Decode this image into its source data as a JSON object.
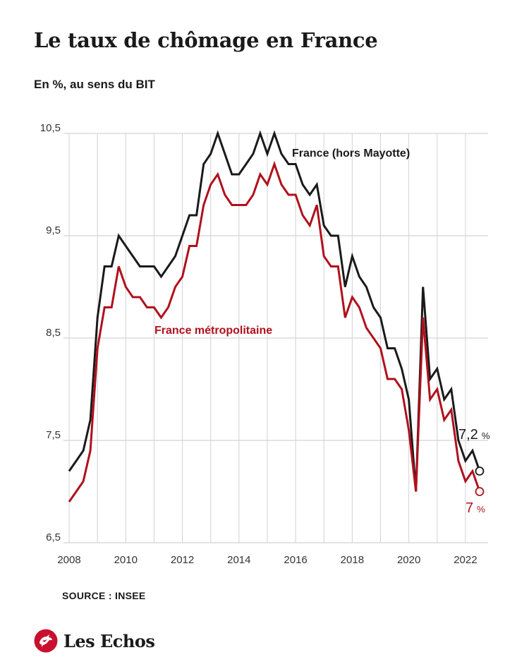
{
  "title": "Le taux de chômage en France",
  "subtitle": "En %, au sens du BIT",
  "source": "SOURCE : INSEE",
  "brand": {
    "name": "Les Echos",
    "logo_icon": "les-echos-rooster-logo",
    "logo_color": "#c8102e"
  },
  "chart_data": {
    "type": "line",
    "xlim": [
      2007.8,
      2022.8
    ],
    "ylim": [
      6.5,
      10.5
    ],
    "grid": {
      "vertical": true,
      "horizontal": true
    },
    "x_ticks": [
      2008,
      2010,
      2012,
      2014,
      2016,
      2018,
      2020,
      2022
    ],
    "x_tick_labels": [
      "2008",
      "2010",
      "2012",
      "2014",
      "2016",
      "2018",
      "2020",
      "2022"
    ],
    "y_ticks": [
      6.5,
      7.5,
      8.5,
      9.5,
      10.5
    ],
    "y_tick_labels": [
      "6,5",
      "7,5",
      "8,5",
      "9,5",
      "10,5"
    ],
    "x": [
      2008.0,
      2008.25,
      2008.5,
      2008.75,
      2009.0,
      2009.25,
      2009.5,
      2009.75,
      2010.0,
      2010.25,
      2010.5,
      2010.75,
      2011.0,
      2011.25,
      2011.5,
      2011.75,
      2012.0,
      2012.25,
      2012.5,
      2012.75,
      2013.0,
      2013.25,
      2013.5,
      2013.75,
      2014.0,
      2014.25,
      2014.5,
      2014.75,
      2015.0,
      2015.25,
      2015.5,
      2015.75,
      2016.0,
      2016.25,
      2016.5,
      2016.75,
      2017.0,
      2017.25,
      2017.5,
      2017.75,
      2018.0,
      2018.25,
      2018.5,
      2018.75,
      2019.0,
      2019.25,
      2019.5,
      2019.75,
      2020.0,
      2020.25,
      2020.5,
      2020.75,
      2021.0,
      2021.25,
      2021.5,
      2021.75,
      2022.0,
      2022.25,
      2022.5
    ],
    "series": [
      {
        "name": "France (hors Mayotte)",
        "color": "#1a1a1a",
        "values": [
          7.2,
          7.3,
          7.4,
          7.7,
          8.7,
          9.2,
          9.2,
          9.5,
          9.4,
          9.3,
          9.2,
          9.2,
          9.2,
          9.1,
          9.2,
          9.3,
          9.5,
          9.7,
          9.7,
          10.2,
          10.3,
          10.5,
          10.3,
          10.1,
          10.1,
          10.2,
          10.3,
          10.5,
          10.3,
          10.5,
          10.3,
          10.2,
          10.2,
          10.0,
          9.9,
          10.0,
          9.6,
          9.5,
          9.5,
          9.0,
          9.3,
          9.1,
          9.0,
          8.8,
          8.7,
          8.4,
          8.4,
          8.2,
          7.9,
          7.0,
          9.0,
          8.1,
          8.2,
          7.9,
          8.0,
          7.5,
          7.3,
          7.4,
          7.2
        ],
        "end_label": "7,2",
        "end_unit": "%"
      },
      {
        "name": "France métropolitaine",
        "color": "#b0101c",
        "values": [
          6.9,
          7.0,
          7.1,
          7.4,
          8.4,
          8.8,
          8.8,
          9.2,
          9.0,
          8.9,
          8.9,
          8.8,
          8.8,
          8.7,
          8.8,
          9.0,
          9.1,
          9.4,
          9.4,
          9.8,
          10.0,
          10.1,
          9.9,
          9.8,
          9.8,
          9.8,
          9.9,
          10.1,
          10.0,
          10.2,
          10.0,
          9.9,
          9.9,
          9.7,
          9.6,
          9.8,
          9.3,
          9.2,
          9.2,
          8.7,
          8.9,
          8.8,
          8.6,
          8.5,
          8.4,
          8.1,
          8.1,
          8.0,
          7.6,
          7.0,
          8.7,
          7.9,
          8.0,
          7.7,
          7.8,
          7.3,
          7.1,
          7.2,
          7.0
        ],
        "end_label": "7",
        "end_unit": "%"
      }
    ]
  }
}
